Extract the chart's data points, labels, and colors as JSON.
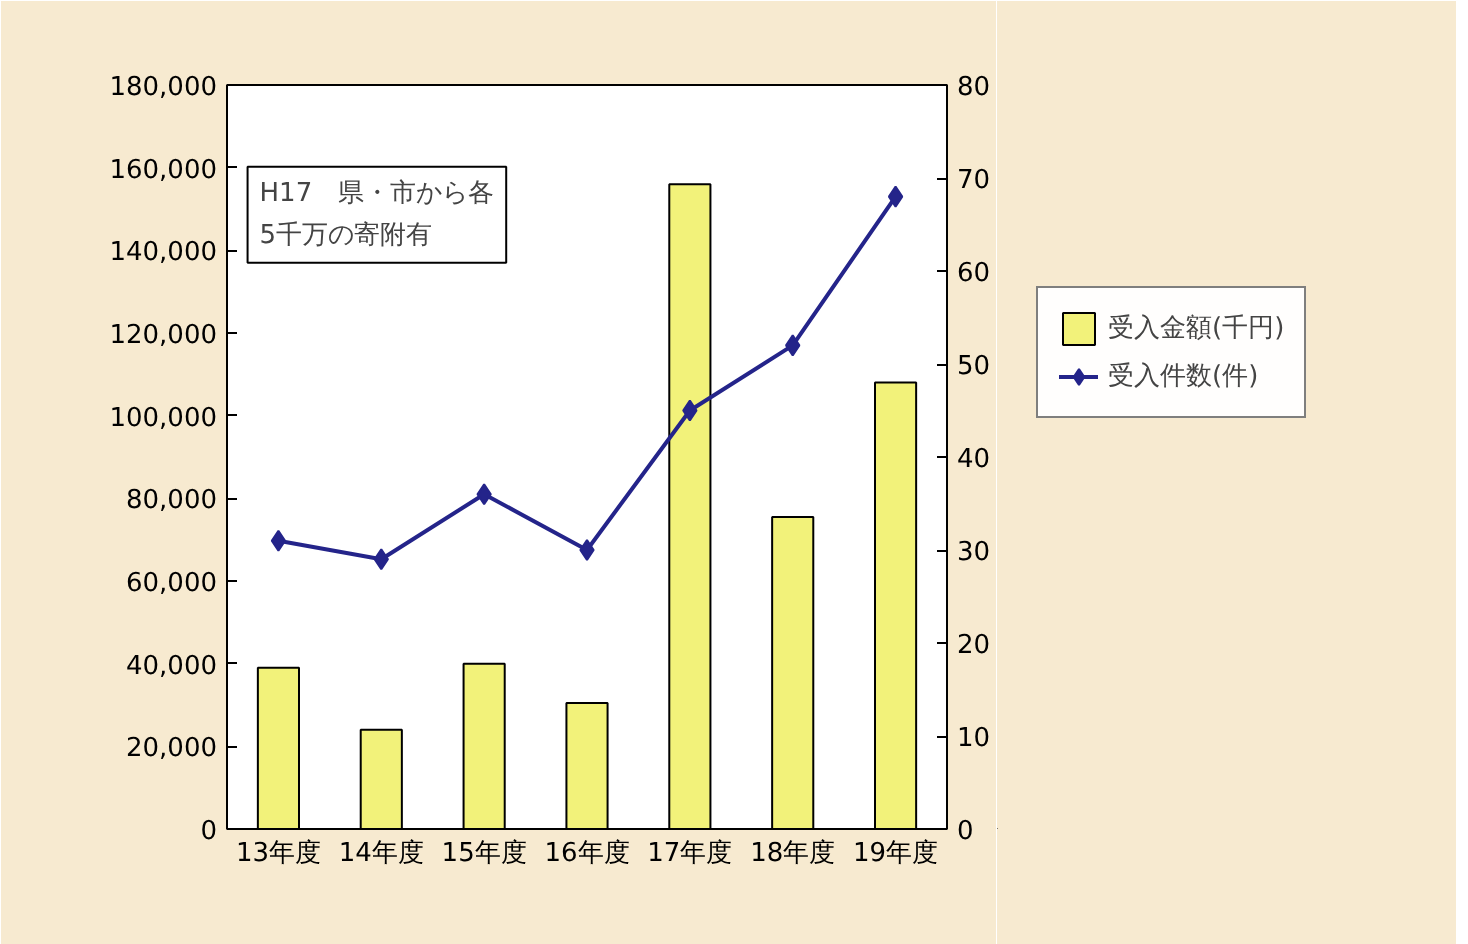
{
  "chart_data": {
    "type": "bar",
    "categories": [
      "13年度",
      "14年度",
      "15年度",
      "16年度",
      "17年度",
      "18年度",
      "19年度"
    ],
    "series": [
      {
        "name": "受入金額(千円)",
        "color": "#f2f27a",
        "values": [
          39000,
          24000,
          40000,
          30500,
          156000,
          75500,
          108000
        ]
      },
      {
        "name": "受入件数(件)",
        "type": "line",
        "axis": "y2",
        "color": "#24248a",
        "marker": "diamond",
        "values": [
          31,
          29,
          36,
          30,
          45,
          52,
          68
        ]
      }
    ],
    "ylim": [
      0,
      180000
    ],
    "yticks": [
      {
        "value": 0,
        "label": "0"
      },
      {
        "value": 20000,
        "label": "20,000"
      },
      {
        "value": 40000,
        "label": "40,000"
      },
      {
        "value": 60000,
        "label": "60,000"
      },
      {
        "value": 80000,
        "label": "80,000"
      },
      {
        "value": 100000,
        "label": "100,000"
      },
      {
        "value": 120000,
        "label": "120,000"
      },
      {
        "value": 140000,
        "label": "140,000"
      },
      {
        "value": 160000,
        "label": "160,000"
      },
      {
        "value": 180000,
        "label": "180,000"
      }
    ],
    "y2lim": [
      0,
      80
    ],
    "y2ticks": [
      0,
      10,
      20,
      30,
      40,
      50,
      60,
      70,
      80
    ],
    "annotations": [
      "H17　県・市から各\n5千万の寄附有"
    ],
    "legend": "right",
    "grid": false
  }
}
